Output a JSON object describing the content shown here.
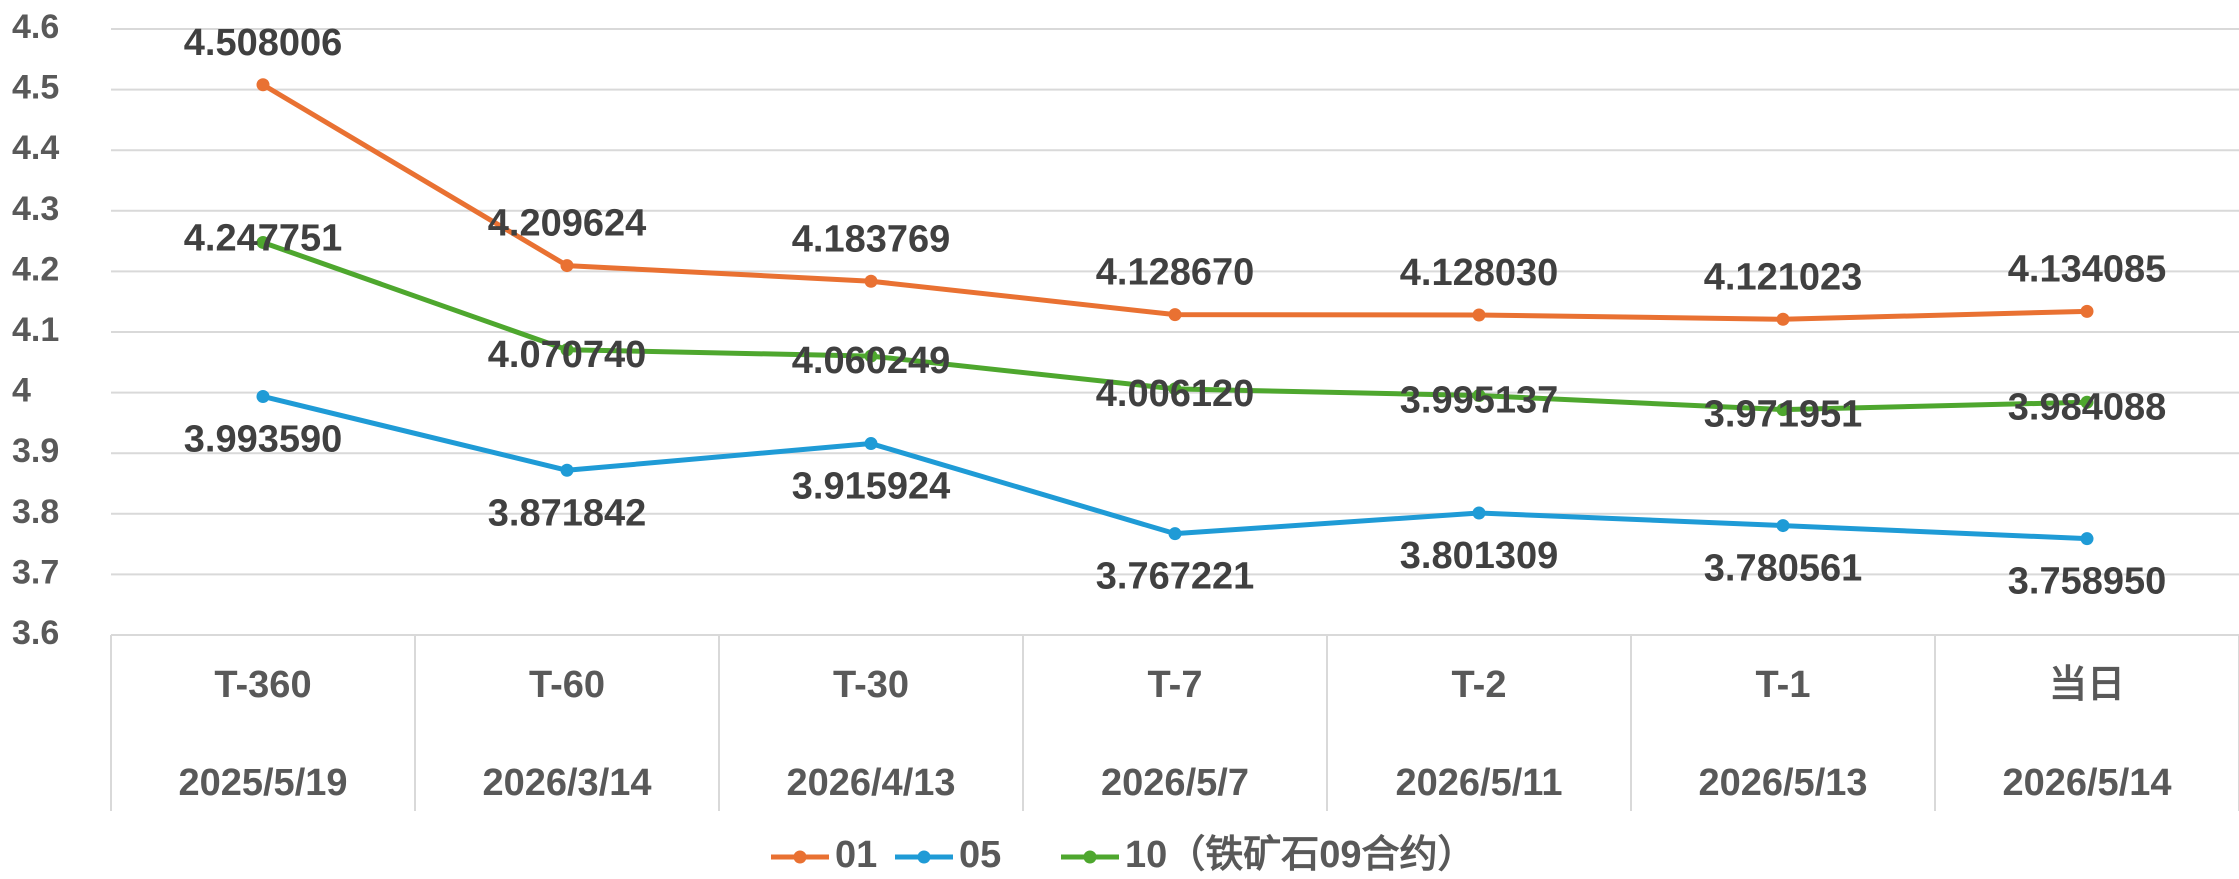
{
  "chart_data": {
    "type": "line",
    "categories": [
      "T-360",
      "T-60",
      "T-30",
      "T-7",
      "T-2",
      "T-1",
      "当日"
    ],
    "category_dates": [
      "2025/5/19",
      "2026/3/14",
      "2026/4/13",
      "2026/5/7",
      "2026/5/11",
      "2026/5/13",
      "2026/5/14"
    ],
    "ylim": [
      3.6,
      4.6
    ],
    "yticks": [
      3.6,
      3.7,
      3.8,
      3.9,
      4,
      4.1,
      4.2,
      4.3,
      4.4,
      4.5,
      4.6
    ],
    "grid": true,
    "legend": "bottom",
    "series": [
      {
        "name": "01",
        "color": "#e97132",
        "values": [
          4.508006,
          4.209624,
          4.183769,
          4.12867,
          4.12803,
          4.121023,
          4.134085
        ],
        "value_labels": [
          "4.508006",
          "4.209624",
          "4.183769",
          "4.128670",
          "4.128030",
          "4.121023",
          "4.134085"
        ]
      },
      {
        "name": "05",
        "color": "#1f9bd6",
        "values": [
          3.99359,
          3.871842,
          3.915924,
          3.767221,
          3.801309,
          3.780561,
          3.75895
        ],
        "value_labels": [
          "3.993590",
          "3.871842",
          "3.915924",
          "3.767221",
          "3.801309",
          "3.780561",
          "3.758950"
        ]
      },
      {
        "name": "10（铁矿石09合约）",
        "color": "#4ea72e",
        "values": [
          4.247751,
          4.07074,
          4.060249,
          4.00612,
          3.995137,
          3.971951,
          3.984088
        ],
        "value_labels": [
          "4.247751",
          "4.070740",
          "4.060249",
          "4.006120",
          "3.995137",
          "3.971951",
          "3.984088"
        ]
      }
    ]
  }
}
